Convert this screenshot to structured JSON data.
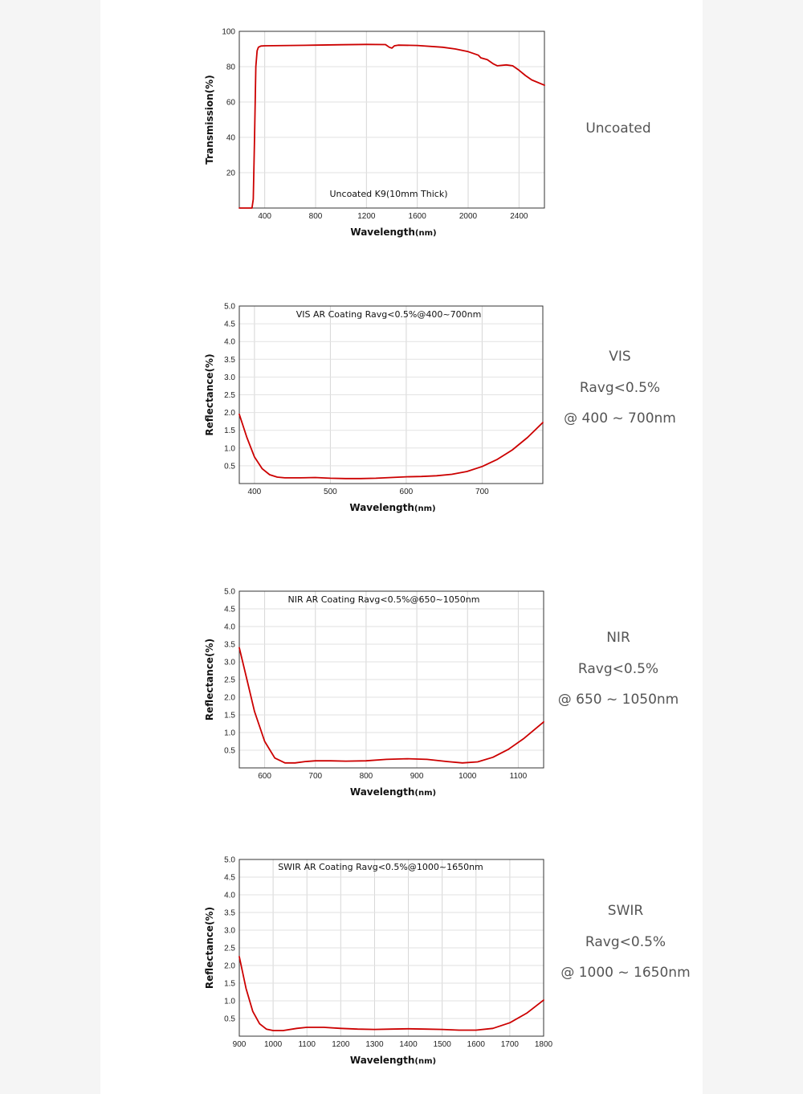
{
  "chart_data": [
    {
      "type": "line",
      "annotation": "Uncoated K9(10mm Thick)",
      "xlabel": "Wavelength",
      "xlabel_unit": "(nm)",
      "ylabel": "Transmission(%)",
      "xlim": [
        200,
        2600
      ],
      "ylim": [
        0,
        100
      ],
      "x_ticks": [
        400,
        800,
        1200,
        1600,
        2000,
        2400
      ],
      "y_ticks": [
        20,
        40,
        60,
        80,
        100
      ],
      "y_tick_labels": [
        "20",
        "40",
        "60",
        "80",
        "100"
      ],
      "grid": true,
      "series": [
        {
          "color": "#cc0000",
          "x": [
            200,
            280,
            300,
            310,
            320,
            330,
            340,
            350,
            370,
            400,
            600,
            800,
            1000,
            1200,
            1350,
            1380,
            1400,
            1420,
            1450,
            1600,
            1800,
            1900,
            2000,
            2080,
            2100,
            2150,
            2200,
            2230,
            2300,
            2350,
            2400,
            2450,
            2500,
            2600
          ],
          "y": [
            0,
            0,
            0,
            5,
            40,
            80,
            89,
            91,
            91.7,
            91.8,
            92,
            92.2,
            92.4,
            92.6,
            92.5,
            91,
            90.5,
            91.8,
            92.2,
            92,
            91,
            90,
            88.5,
            86.5,
            85,
            84,
            81.5,
            80.5,
            81,
            80.5,
            78,
            75,
            72.5,
            69.5
          ]
        }
      ],
      "side_label": [
        "Uncoated"
      ]
    },
    {
      "type": "line",
      "annotation": "VIS AR Coating Ravg<0.5%@400~700nm",
      "xlabel": "Wavelength",
      "xlabel_unit": "(nm)",
      "ylabel": "Reflectance(%)",
      "xlim": [
        380,
        780
      ],
      "ylim": [
        0,
        5
      ],
      "x_ticks": [
        400,
        500,
        600,
        700
      ],
      "y_ticks": [
        0.5,
        1,
        1.5,
        2,
        2.5,
        3,
        3.5,
        4,
        4.5,
        5
      ],
      "y_tick_labels": [
        "0.5",
        "1.0",
        "1.5",
        "2.0",
        "2.5",
        "3.0",
        "3.5",
        "4.0",
        "4.5",
        "5.0"
      ],
      "grid": true,
      "series": [
        {
          "color": "#cc0000",
          "x": [
            380,
            390,
            400,
            410,
            420,
            430,
            440,
            460,
            480,
            500,
            520,
            540,
            560,
            580,
            600,
            620,
            640,
            660,
            680,
            700,
            720,
            740,
            760,
            780
          ],
          "y": [
            1.95,
            1.3,
            0.75,
            0.42,
            0.25,
            0.18,
            0.16,
            0.16,
            0.17,
            0.15,
            0.14,
            0.14,
            0.15,
            0.17,
            0.19,
            0.2,
            0.22,
            0.26,
            0.34,
            0.48,
            0.68,
            0.95,
            1.3,
            1.72
          ]
        }
      ],
      "side_label": [
        "VIS",
        "Ravg<0.5%",
        "@ 400 ~ 700nm"
      ]
    },
    {
      "type": "line",
      "annotation": "NIR AR Coating Ravg<0.5%@650~1050nm",
      "xlabel": "Wavelength",
      "xlabel_unit": "(nm)",
      "ylabel": "Reflectance(%)",
      "xlim": [
        550,
        1150
      ],
      "ylim": [
        0,
        5
      ],
      "x_ticks": [
        600,
        700,
        800,
        900,
        1000,
        1100
      ],
      "y_ticks": [
        0.5,
        1,
        1.5,
        2,
        2.5,
        3,
        3.5,
        4,
        4.5,
        5
      ],
      "y_tick_labels": [
        "0.5",
        "1.0",
        "1.5",
        "2.0",
        "2.5",
        "3.0",
        "3.5",
        "4.0",
        "4.5",
        "5.0"
      ],
      "grid": true,
      "series": [
        {
          "color": "#cc0000",
          "x": [
            550,
            565,
            580,
            600,
            620,
            640,
            660,
            680,
            700,
            730,
            760,
            800,
            840,
            880,
            920,
            960,
            990,
            1020,
            1050,
            1080,
            1110,
            1150
          ],
          "y": [
            3.4,
            2.5,
            1.6,
            0.75,
            0.28,
            0.14,
            0.14,
            0.18,
            0.2,
            0.2,
            0.19,
            0.2,
            0.24,
            0.26,
            0.24,
            0.18,
            0.14,
            0.17,
            0.3,
            0.52,
            0.82,
            1.3
          ]
        }
      ],
      "side_label": [
        "NIR",
        "Ravg<0.5%",
        "@ 650 ~ 1050nm"
      ]
    },
    {
      "type": "line",
      "annotation": "SWIR AR Coating Ravg<0.5%@1000~1650nm",
      "xlabel": "Wavelength",
      "xlabel_unit": "(nm)",
      "ylabel": "Reflectance(%)",
      "xlim": [
        900,
        1800
      ],
      "ylim": [
        0,
        5
      ],
      "x_ticks": [
        900,
        1000,
        1100,
        1200,
        1300,
        1400,
        1500,
        1600,
        1700,
        1800
      ],
      "y_ticks": [
        0.5,
        1,
        1.5,
        2,
        2.5,
        3,
        3.5,
        4,
        4.5,
        5
      ],
      "y_tick_labels": [
        "0.5",
        "1.0",
        "1.5",
        "2.0",
        "2.5",
        "3.0",
        "3.5",
        "4.0",
        "4.5",
        "5.0"
      ],
      "grid": true,
      "series": [
        {
          "color": "#cc0000",
          "x": [
            900,
            920,
            940,
            960,
            980,
            1000,
            1030,
            1070,
            1100,
            1150,
            1200,
            1250,
            1300,
            1350,
            1400,
            1450,
            1500,
            1550,
            1600,
            1650,
            1700,
            1750,
            1800
          ],
          "y": [
            2.25,
            1.35,
            0.7,
            0.35,
            0.2,
            0.16,
            0.16,
            0.22,
            0.25,
            0.25,
            0.22,
            0.2,
            0.19,
            0.2,
            0.21,
            0.2,
            0.19,
            0.17,
            0.17,
            0.22,
            0.38,
            0.65,
            1.02
          ]
        }
      ],
      "side_label": [
        "SWIR",
        "Ravg<0.5%",
        "@ 1000 ~ 1650nm"
      ]
    }
  ]
}
